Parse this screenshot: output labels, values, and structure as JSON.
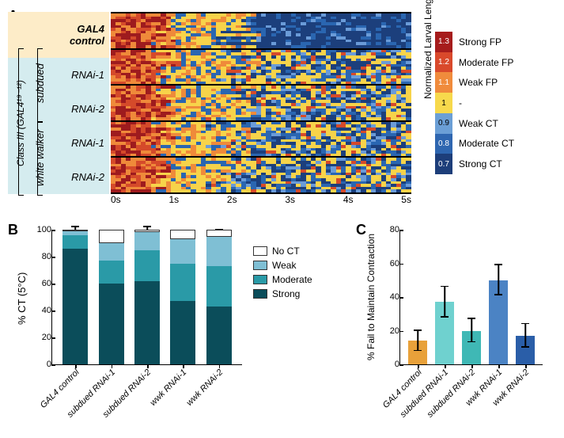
{
  "panelA": {
    "label": "A",
    "row_groups": [
      {
        "label": "GAL4\ncontrol",
        "bg": "#fdecc8",
        "italic_bold": true
      },
      {
        "label": "RNAi-1",
        "bg": "#d5ecef"
      },
      {
        "label": "RNAi-2",
        "bg": "#d5ecef"
      },
      {
        "label": "RNAi-1",
        "bg": "#d5ecef"
      },
      {
        "label": "RNAi-2",
        "bg": "#d5ecef"
      }
    ],
    "side_groups": {
      "class3": "Class III (GAL4¹⁹⁻¹²)",
      "subdued": "subdued",
      "whitewalker": "white walker"
    },
    "x_ticks": [
      "0s",
      "1s",
      "2s",
      "3s",
      "4s",
      "5s"
    ],
    "heatmap_colors": [
      "#9e1b1e",
      "#d54a2a",
      "#ef8a3a",
      "#f7d34a",
      "#2a66b1",
      "#1c3f7c",
      "#6a9bd8"
    ],
    "rows_per_group": 12,
    "cols": 60
  },
  "colorbar": {
    "title": "Normalized Larval Length",
    "levels": [
      {
        "val": "1.3",
        "label": "Strong FP",
        "color": "#a61c1c"
      },
      {
        "val": "1.2",
        "label": "Moderate FP",
        "color": "#d9492b"
      },
      {
        "val": "1.1",
        "label": "Weak FP",
        "color": "#f08b3c"
      },
      {
        "val": "1",
        "label": "-",
        "color": "#f7d94c",
        "text": "#000"
      },
      {
        "val": "0.9",
        "label": "Weak CT",
        "color": "#6b9fd6",
        "text": "#000"
      },
      {
        "val": "0.8",
        "label": "Moderate CT",
        "color": "#2e66b0"
      },
      {
        "val": "0.7",
        "label": "Strong CT",
        "color": "#1d3e7a"
      }
    ]
  },
  "panelB": {
    "label": "B",
    "ylabel": "% CT (5°C)",
    "ymax": 100,
    "ytick_step": 20,
    "categories": [
      "GAL4 control",
      "subdued RNAi-1",
      "subdued RNAi-2",
      "wwk RNAi-1",
      "wwk RNAi-2"
    ],
    "series_order": [
      "Strong",
      "Moderate",
      "Weak",
      "No CT"
    ],
    "colors": {
      "Strong": "#0b4d5a",
      "Moderate": "#2a9aa7",
      "Weak": "#7fbfd4",
      "No CT": "#ffffff"
    },
    "data": [
      {
        "Strong": 87,
        "Moderate": 10,
        "Weak": 3,
        "No CT": 0,
        "err": {
          "Strong": 6,
          "Moderate": 5
        }
      },
      {
        "Strong": 60,
        "Moderate": 17,
        "Weak": 13,
        "No CT": 10,
        "err": {
          "Strong": 8,
          "Moderate": 5,
          "Weak": 5
        }
      },
      {
        "Strong": 62,
        "Moderate": 23,
        "Weak": 13,
        "No CT": 2,
        "err": {
          "Strong": 8,
          "Moderate": 6,
          "Weak": 4
        }
      },
      {
        "Strong": 47,
        "Moderate": 28,
        "Weak": 18,
        "No CT": 7,
        "err": {
          "Strong": 8,
          "Moderate": 6,
          "Weak": 5
        }
      },
      {
        "Strong": 43,
        "Moderate": 30,
        "Weak": 22,
        "No CT": 5,
        "err": {
          "Strong": 8,
          "Moderate": 6,
          "Weak": 5
        }
      }
    ],
    "legend": [
      {
        "label": "No CT",
        "color": "#ffffff"
      },
      {
        "label": "Weak",
        "color": "#7fbfd4"
      },
      {
        "label": "Moderate",
        "color": "#2a9aa7"
      },
      {
        "label": "Strong",
        "color": "#0b4d5a"
      }
    ]
  },
  "panelC": {
    "label": "C",
    "ylabel": "% Fail to Maintain Contraction",
    "ymax": 80,
    "ytick_step": 20,
    "bars": [
      {
        "label": "GAL4 control",
        "val": 14,
        "err": 6,
        "color": "#e8a13a"
      },
      {
        "label": "subdued RNAi-1",
        "val": 37,
        "err": 9,
        "color": "#6fd1cf"
      },
      {
        "label": "subdued RNAi-2",
        "val": 20,
        "err": 7,
        "color": "#3fb8b5"
      },
      {
        "label": "wwk RNAi-1",
        "val": 50,
        "err": 9,
        "color": "#4b83c4"
      },
      {
        "label": "wwk RNAi-2",
        "val": 17,
        "err": 7,
        "color": "#2a5ea8"
      }
    ]
  }
}
